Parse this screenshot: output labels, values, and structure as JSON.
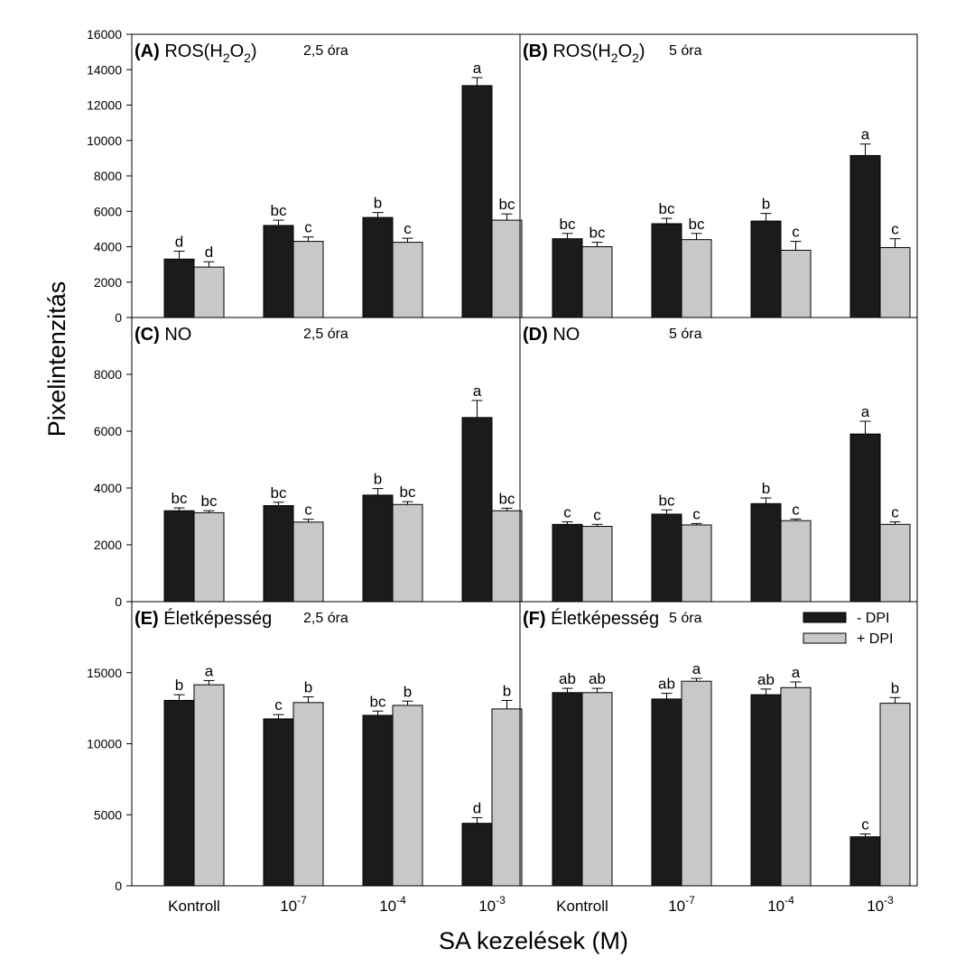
{
  "chart_data": {
    "type": "bar",
    "ylabel": "Pixelintenzitás",
    "xlabel": "SA kezelések (M)",
    "categories": [
      {
        "base": "Kontroll",
        "exp": ""
      },
      {
        "base": "10",
        "exp": "-7"
      },
      {
        "base": "10",
        "exp": "-4"
      },
      {
        "base": "10",
        "exp": "-3"
      }
    ],
    "legend": [
      {
        "label": "- DPI",
        "color": "#1b1b1b"
      },
      {
        "label": "+ DPI",
        "color": "#c8c8c8"
      }
    ],
    "rows": [
      {
        "ylim": [
          0,
          16000
        ],
        "yticks": [
          0,
          2000,
          4000,
          6000,
          8000,
          10000,
          12000,
          14000,
          16000
        ],
        "panels": [
          {
            "letter": "(A)",
            "title": "ROS(H",
            "sub1": "2",
            "mid": "O",
            "sub2": "2",
            "close": ")",
            "time": "2,5 óra",
            "series": [
              {
                "name": "- DPI",
                "values": [
                  3300,
                  5200,
                  5650,
                  13100
                ],
                "errors": [
                  450,
                  300,
                  280,
                  450
                ],
                "letters": [
                  "d",
                  "bc",
                  "b",
                  "a"
                ]
              },
              {
                "name": "+ DPI",
                "values": [
                  2850,
                  4300,
                  4250,
                  5500
                ],
                "errors": [
                  300,
                  250,
                  230,
                  350
                ],
                "letters": [
                  "d",
                  "c",
                  "c",
                  "bc"
                ]
              }
            ]
          },
          {
            "letter": "(B)",
            "title": "ROS(H",
            "sub1": "2",
            "mid": "O",
            "sub2": "2",
            "close": ")",
            "time": "5 óra",
            "series": [
              {
                "name": "- DPI",
                "values": [
                  4450,
                  5300,
                  5450,
                  9150
                ],
                "errors": [
                  300,
                  300,
                  430,
                  650
                ],
                "letters": [
                  "bc",
                  "bc",
                  "b",
                  "a"
                ]
              },
              {
                "name": "+ DPI",
                "values": [
                  4000,
                  4400,
                  3800,
                  3950
                ],
                "errors": [
                  250,
                  350,
                  500,
                  500
                ],
                "letters": [
                  "bc",
                  "bc",
                  "c",
                  "c"
                ]
              }
            ]
          }
        ]
      },
      {
        "ylim": [
          0,
          10000
        ],
        "yticks": [
          0,
          2000,
          4000,
          6000,
          8000
        ],
        "panels": [
          {
            "letter": "(C)",
            "title": "NO",
            "time": "2,5 óra",
            "series": [
              {
                "name": "- DPI",
                "values": [
                  3200,
                  3380,
                  3750,
                  6480
                ],
                "errors": [
                  100,
                  120,
                  230,
                  600
                ],
                "letters": [
                  "bc",
                  "bc",
                  "b",
                  "a"
                ]
              },
              {
                "name": "+ DPI",
                "values": [
                  3130,
                  2800,
                  3420,
                  3200
                ],
                "errors": [
                  70,
                  100,
                  100,
                  90
                ],
                "letters": [
                  "bc",
                  "c",
                  "bc",
                  "bc"
                ]
              }
            ]
          },
          {
            "letter": "(D)",
            "title": "NO",
            "time": "5 óra",
            "series": [
              {
                "name": "- DPI",
                "values": [
                  2720,
                  3080,
                  3450,
                  5900
                ],
                "errors": [
                  90,
                  150,
                  200,
                  450
                ],
                "letters": [
                  "c",
                  "bc",
                  "b",
                  "a"
                ]
              },
              {
                "name": "+ DPI",
                "values": [
                  2650,
                  2700,
                  2850,
                  2720
                ],
                "errors": [
                  70,
                  50,
                  60,
                  90
                ],
                "letters": [
                  "c",
                  "c",
                  "c",
                  "c"
                ]
              }
            ]
          }
        ]
      },
      {
        "ylim": [
          0,
          20000
        ],
        "yticks": [
          0,
          5000,
          10000,
          15000
        ],
        "panels": [
          {
            "letter": "(E)",
            "title": "Életképesség",
            "time": "2,5 óra",
            "series": [
              {
                "name": "- DPI",
                "values": [
                  13050,
                  11750,
                  12000,
                  4400
                ],
                "errors": [
                  400,
                  300,
                  300,
                  400
                ],
                "letters": [
                  "b",
                  "c",
                  "bc",
                  "d"
                ]
              },
              {
                "name": "+ DPI",
                "values": [
                  14150,
                  12900,
                  12700,
                  12450
                ],
                "errors": [
                  300,
                  400,
                  300,
                  600
                ],
                "letters": [
                  "a",
                  "b",
                  "b",
                  "b"
                ]
              }
            ]
          },
          {
            "letter": "(F)",
            "title": "Életképesség",
            "time": "5 óra",
            "showLegend": true,
            "series": [
              {
                "name": "- DPI",
                "values": [
                  13600,
                  13150,
                  13450,
                  3450
                ],
                "errors": [
                  300,
                  400,
                  400,
                  200
                ],
                "letters": [
                  "ab",
                  "ab",
                  "ab",
                  "c"
                ]
              },
              {
                "name": "+ DPI",
                "values": [
                  13600,
                  14400,
                  13950,
                  12850
                ],
                "errors": [
                  300,
                  200,
                  400,
                  400
                ],
                "letters": [
                  "ab",
                  "a",
                  "a",
                  "b"
                ]
              }
            ]
          }
        ]
      }
    ]
  }
}
